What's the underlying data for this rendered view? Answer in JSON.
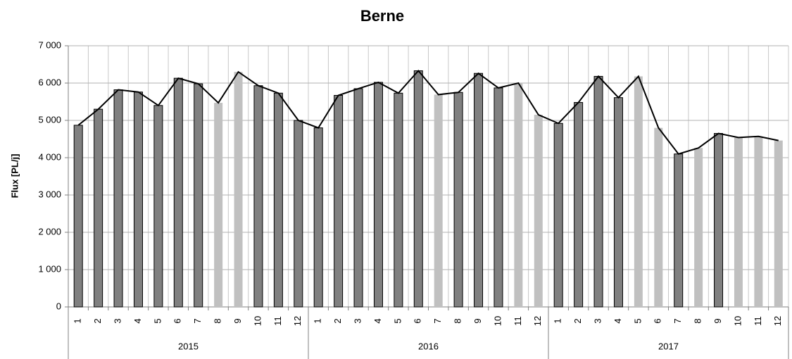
{
  "chart_data": {
    "type": "bar",
    "title": "Berne",
    "y_label": "Flux [PL/j]",
    "categories": [
      "1",
      "2",
      "3",
      "4",
      "5",
      "6",
      "7",
      "8",
      "9",
      "10",
      "11",
      "12",
      "1",
      "2",
      "3",
      "4",
      "5",
      "6",
      "7",
      "8",
      "9",
      "10",
      "11",
      "12",
      "1",
      "2",
      "3",
      "4",
      "5",
      "6",
      "7",
      "8",
      "9",
      "10",
      "11",
      "12"
    ],
    "groups": [
      {
        "label": "2015",
        "span": 12
      },
      {
        "label": "2016",
        "span": 12
      },
      {
        "label": "2017",
        "span": 12
      }
    ],
    "values": [
      4870,
      5300,
      5820,
      5760,
      5400,
      6130,
      5980,
      5470,
      6300,
      5930,
      5730,
      5000,
      4800,
      5670,
      5850,
      6020,
      5730,
      6330,
      5690,
      5750,
      6260,
      5870,
      6000,
      5150,
      4920,
      5480,
      6180,
      5610,
      6180,
      4800,
      4100,
      4260,
      4650,
      4540,
      4570,
      4460
    ],
    "bar_colors": [
      "#808080",
      "#808080",
      "#808080",
      "#808080",
      "#808080",
      "#808080",
      "#808080",
      "#c0c0c0",
      "#c0c0c0",
      "#808080",
      "#808080",
      "#808080",
      "#808080",
      "#808080",
      "#808080",
      "#808080",
      "#808080",
      "#808080",
      "#c0c0c0",
      "#808080",
      "#808080",
      "#808080",
      "#c0c0c0",
      "#c0c0c0",
      "#808080",
      "#808080",
      "#808080",
      "#808080",
      "#c0c0c0",
      "#c0c0c0",
      "#808080",
      "#c0c0c0",
      "#808080",
      "#c0c0c0",
      "#c0c0c0",
      "#c0c0c0"
    ],
    "bar_edge_colors": [
      "#000000",
      "#000000",
      "#000000",
      "#000000",
      "#000000",
      "#000000",
      "#000000",
      null,
      null,
      "#000000",
      "#000000",
      "#000000",
      "#000000",
      "#000000",
      "#000000",
      "#000000",
      "#000000",
      "#000000",
      null,
      "#000000",
      "#000000",
      "#000000",
      null,
      null,
      "#000000",
      "#000000",
      "#000000",
      "#000000",
      null,
      null,
      "#000000",
      null,
      "#000000",
      null,
      null,
      null
    ],
    "line_color": "#000000",
    "ylim": [
      0,
      7000
    ],
    "yticks": [
      0,
      {
        "value": 1000,
        "label": "1 000"
      },
      {
        "value": 2000,
        "label": "2 000"
      },
      {
        "value": 3000,
        "label": "3 000"
      },
      {
        "value": 4000,
        "label": "4 000"
      },
      {
        "value": 5000,
        "label": "5 000"
      },
      {
        "value": 6000,
        "label": "6 000"
      },
      {
        "value": 7000,
        "label": "7 000"
      }
    ],
    "grid": true
  }
}
